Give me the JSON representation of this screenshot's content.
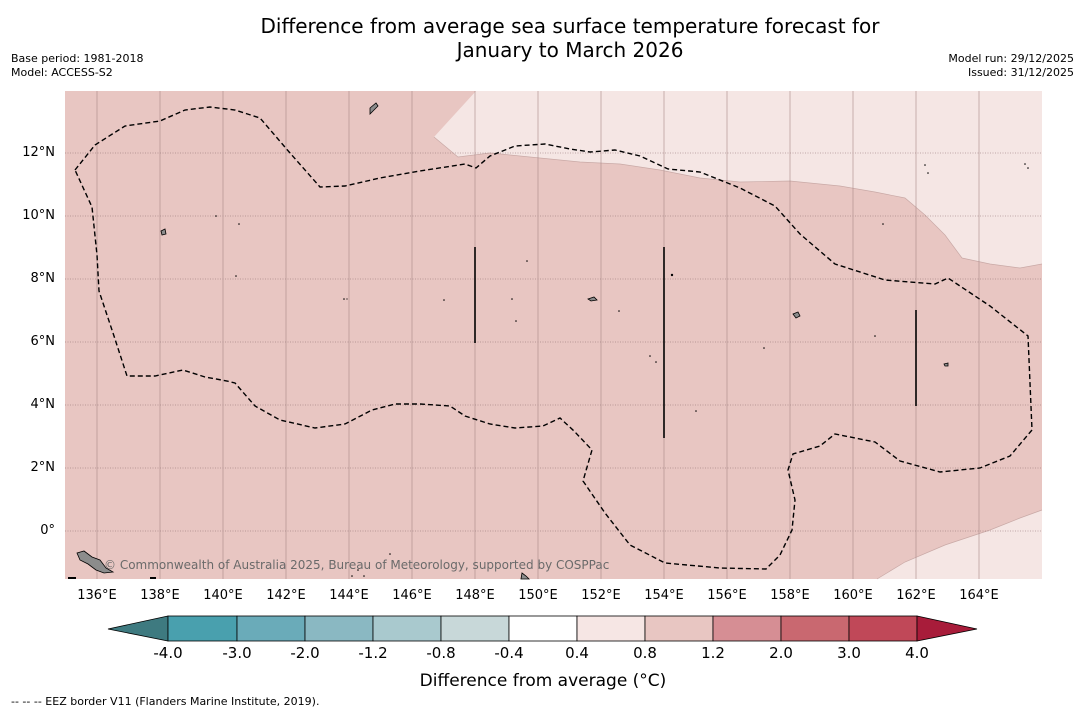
{
  "title": {
    "line1": "Difference from average sea surface temperature forecast for",
    "line2": "January to March 2026"
  },
  "meta": {
    "base_period": "Base period: 1981-2018",
    "model": "Model: ACCESS-S2",
    "model_run": "Model run: 29/12/2025",
    "issued": "Issued: 31/12/2025"
  },
  "map": {
    "lat_labels": [
      "12°N",
      "10°N",
      "8°N",
      "6°N",
      "4°N",
      "2°N",
      "0°"
    ],
    "lon_labels": [
      "136°E",
      "138°E",
      "140°E",
      "142°E",
      "144°E",
      "146°E",
      "148°E",
      "150°E",
      "152°E",
      "154°E",
      "156°E",
      "158°E",
      "160°E",
      "162°E",
      "164°E"
    ],
    "copyright": "© Commonwealth of Australia 2025, Bureau of Meteorology, supported by COSPPac",
    "fill_colors": {
      "main": "#e8c6c2",
      "light": "#f5e6e4",
      "grid": "#8a6a6a"
    }
  },
  "colorbar": {
    "title": "Difference from average (°C)",
    "labels": [
      "-4.0",
      "-3.0",
      "-2.0",
      "-1.2",
      "-0.8",
      "-0.4",
      "0.4",
      "0.8",
      "1.2",
      "2.0",
      "3.0",
      "4.0"
    ],
    "colors": [
      "#3e7a80",
      "#49a0ae",
      "#6aabb9",
      "#8ab8c2",
      "#a9c9ce",
      "#c8d8d9",
      "#ffffff",
      "#f6e6e4",
      "#e8c6c2",
      "#d68e94",
      "#c96870",
      "#c04858",
      "#a81c3a"
    ]
  },
  "footnote": "--  --  -- EEZ border V11 (Flanders Marine Institute, 2019)."
}
